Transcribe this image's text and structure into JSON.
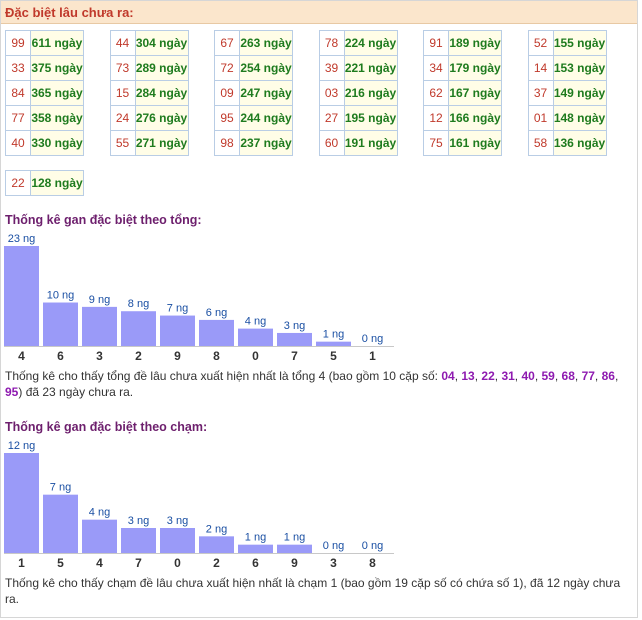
{
  "header": {
    "title": "Đặc biệt lâu chưa ra:"
  },
  "gan_tables": [
    [
      [
        "99",
        "611 ngày"
      ],
      [
        "33",
        "375 ngày"
      ],
      [
        "84",
        "365 ngày"
      ],
      [
        "77",
        "358 ngày"
      ],
      [
        "40",
        "330 ngày"
      ]
    ],
    [
      [
        "44",
        "304 ngày"
      ],
      [
        "73",
        "289 ngày"
      ],
      [
        "15",
        "284 ngày"
      ],
      [
        "24",
        "276 ngày"
      ],
      [
        "55",
        "271 ngày"
      ]
    ],
    [
      [
        "67",
        "263 ngày"
      ],
      [
        "72",
        "254 ngày"
      ],
      [
        "09",
        "247 ngày"
      ],
      [
        "95",
        "244 ngày"
      ],
      [
        "98",
        "237 ngày"
      ]
    ],
    [
      [
        "78",
        "224 ngày"
      ],
      [
        "39",
        "221 ngày"
      ],
      [
        "03",
        "216 ngày"
      ],
      [
        "27",
        "195 ngày"
      ],
      [
        "60",
        "191 ngày"
      ]
    ],
    [
      [
        "91",
        "189 ngày"
      ],
      [
        "34",
        "179 ngày"
      ],
      [
        "62",
        "167 ngày"
      ],
      [
        "12",
        "166 ngày"
      ],
      [
        "75",
        "161 ngày"
      ]
    ],
    [
      [
        "52",
        "155 ngày"
      ],
      [
        "14",
        "153 ngày"
      ],
      [
        "37",
        "149 ngày"
      ],
      [
        "01",
        "148 ngày"
      ],
      [
        "58",
        "136 ngày"
      ]
    ],
    [
      [
        "22",
        "128 ngày"
      ]
    ]
  ],
  "sum_section": {
    "title": "Thống kê gan đặc biệt theo tổng:",
    "desc_prefix": "Thống kê cho thấy tổng đề lâu chưa xuất hiện nhất là tổng 4 (bao gồm 10 cặp số: ",
    "numbers": [
      "04",
      "13",
      "22",
      "31",
      "40",
      "59",
      "68",
      "77",
      "86",
      "95"
    ],
    "desc_suffix": ") đã 23 ngày chưa ra."
  },
  "touch_section": {
    "title": "Thống kê gan đặc biệt theo chạm:",
    "desc": "Thống kê cho thấy chạm đề lâu chưa xuất hiện nhất là chạm 1 (bao gồm 19 cặp số có chứa số 1), đã 12 ngày chưa ra."
  },
  "chart_data": [
    {
      "type": "bar",
      "categories": [
        "4",
        "6",
        "3",
        "2",
        "9",
        "8",
        "0",
        "7",
        "5",
        "1"
      ],
      "values": [
        23,
        10,
        9,
        8,
        7,
        6,
        4,
        3,
        1,
        0
      ],
      "data_labels": [
        "23 ng",
        "10 ng",
        "9 ng",
        "8 ng",
        "7 ng",
        "6 ng",
        "4 ng",
        "3 ng",
        "1 ng",
        "0 ng"
      ],
      "title": "Thống kê gan đặc biệt theo tổng:",
      "bar_color": "#9a9af8"
    },
    {
      "type": "bar",
      "categories": [
        "1",
        "5",
        "4",
        "7",
        "0",
        "2",
        "6",
        "9",
        "3",
        "8"
      ],
      "values": [
        12,
        7,
        4,
        3,
        3,
        2,
        1,
        1,
        0,
        0
      ],
      "data_labels": [
        "12 ng",
        "7 ng",
        "4 ng",
        "3 ng",
        "3 ng",
        "2 ng",
        "1 ng",
        "1 ng",
        "0 ng",
        "0 ng"
      ],
      "title": "Thống kê gan đặc biệt theo chạm:",
      "bar_color": "#9a9af8"
    }
  ]
}
